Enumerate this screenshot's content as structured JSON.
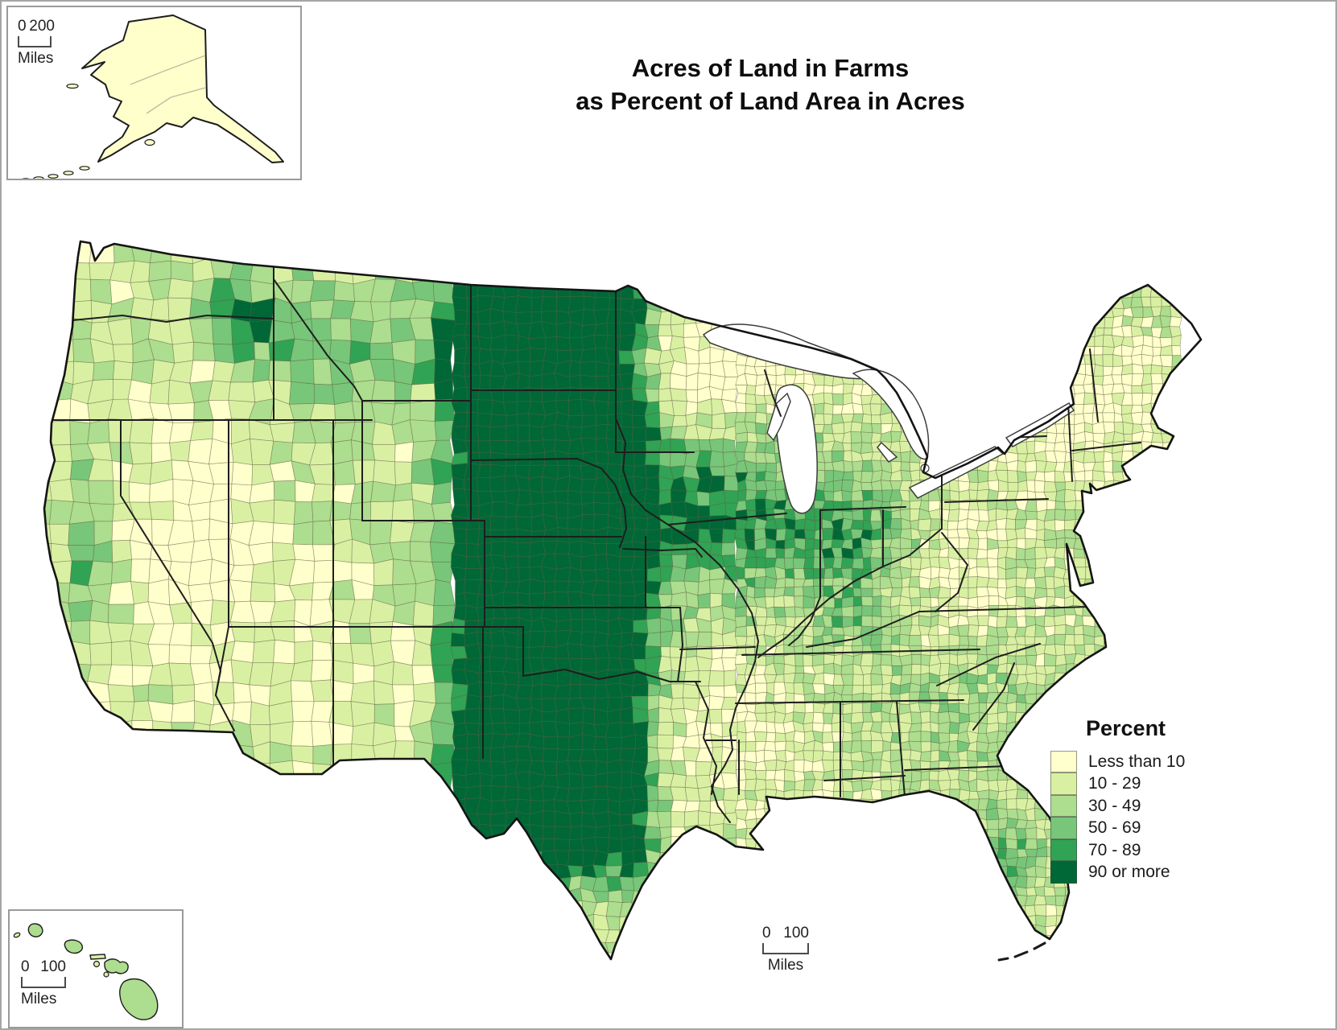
{
  "title": {
    "line1": "Acres of Land in Farms",
    "line2": "as Percent of Land Area in Acres"
  },
  "legend": {
    "heading": "Percent",
    "classes": [
      {
        "label": "Less than 10",
        "color": "#FFFFCC"
      },
      {
        "label": "10 - 29",
        "color": "#D9F0A3"
      },
      {
        "label": "30 - 49",
        "color": "#ADDD8E"
      },
      {
        "label": "50 - 69",
        "color": "#78C679"
      },
      {
        "label": "70 - 89",
        "color": "#31A354"
      },
      {
        "label": "90 or more",
        "color": "#006837"
      }
    ]
  },
  "scalebars": {
    "alaska": {
      "start": "0",
      "end": "200",
      "unit": "Miles"
    },
    "hawaii": {
      "start": "0",
      "end": "100",
      "unit": "Miles"
    },
    "main": {
      "start": "0",
      "end": "100",
      "unit": "Miles"
    }
  },
  "map": {
    "country_outline_color": "#141414",
    "state_line_color": "#1e1e1e",
    "county_line_color": "#5f5f45",
    "water_color": "#ffffff",
    "alaska_fill": "#FFFFCC",
    "hawaii_small_fill": "#D9F0A3",
    "hawaii_large_fill": "#ADDD8E"
  }
}
